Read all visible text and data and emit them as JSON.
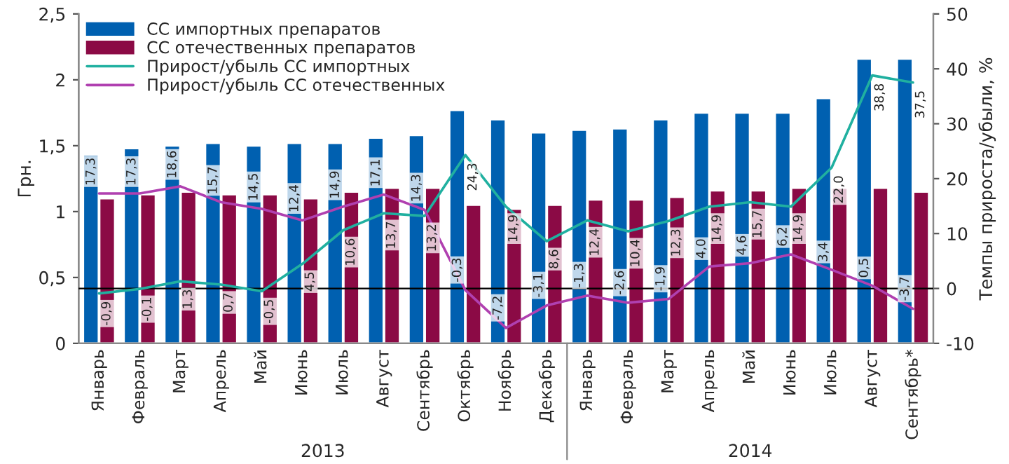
{
  "chart_data": {
    "type": "bar",
    "categories": [
      "Январь",
      "Февраль",
      "Март",
      "Апрель",
      "Май",
      "Июнь",
      "Июль",
      "Август",
      "Сентябрь",
      "Октябрь",
      "Ноябрь",
      "Декабрь",
      "Январь",
      "Февраль",
      "Март",
      "Апрель",
      "Май",
      "Июнь",
      "Июль",
      "Август",
      "Сентябрь*"
    ],
    "series": [
      {
        "name": "СС импортных препаратов",
        "color": "#0060b0",
        "values": [
          1.43,
          1.48,
          1.5,
          1.52,
          1.5,
          1.52,
          1.52,
          1.56,
          1.58,
          1.77,
          1.7,
          1.6,
          1.62,
          1.63,
          1.7,
          1.75,
          1.75,
          1.75,
          1.86,
          2.16,
          2.16
        ]
      },
      {
        "name": "СС отечественных препаратов",
        "color": "#8b0a45",
        "values": [
          1.1,
          1.13,
          1.15,
          1.13,
          1.13,
          1.1,
          1.15,
          1.18,
          1.18,
          1.05,
          1.02,
          1.05,
          1.09,
          1.09,
          1.11,
          1.16,
          1.16,
          1.18,
          1.18,
          1.18,
          1.15
        ]
      },
      {
        "name": "Прирост/убыль СС импортных",
        "type": "line",
        "axis": "y2",
        "color": "#20b0a0",
        "values": [
          -0.9,
          -0.1,
          1.3,
          0.7,
          -0.5,
          4.5,
          10.6,
          13.7,
          13.2,
          24.3,
          14.9,
          8.6,
          12.4,
          10.4,
          12.3,
          14.9,
          15.7,
          14.9,
          22.0,
          38.8,
          37.5
        ],
        "value_labels": [
          "-0,9",
          "-0,1",
          "1,3",
          "0,7",
          "-0,5",
          "4,5",
          "10,6",
          "13,7",
          "13,2",
          "24,3",
          "14,9",
          "8,6",
          "12,4",
          "10,4",
          "12,3",
          "14,9",
          "15,7",
          "14,9",
          "22,0",
          "38,8",
          "37,5"
        ]
      },
      {
        "name": "Прирост/убыль СС отечественных",
        "type": "line",
        "axis": "y2",
        "color": "#b040b0",
        "values": [
          17.3,
          17.3,
          18.6,
          15.7,
          14.5,
          12.4,
          14.9,
          17.1,
          14.3,
          -0.3,
          -7.2,
          -3.1,
          -1.3,
          -2.6,
          -1.9,
          4.0,
          4.6,
          6.2,
          3.4,
          0.5,
          -3.7
        ],
        "value_labels": [
          "17,3",
          "17,3",
          "18,6",
          "15,7",
          "14,5",
          "12,4",
          "14,9",
          "17,1",
          "14,3",
          "-0,3",
          "-7,2",
          "-3,1",
          "-1,3",
          "-2,6",
          "-1,9",
          "4,0",
          "4,6",
          "6,2",
          "3,4",
          "0,5",
          "-3,7"
        ]
      }
    ],
    "ylabel": "Грн.",
    "y2label": "Темпы прироста/убыли, %",
    "ylim": [
      0,
      2.5
    ],
    "yticks": [
      0,
      {
        "value": 0.5,
        "label": "0,5"
      },
      1,
      {
        "value": 1.5,
        "label": "1,5"
      },
      2,
      {
        "value": 2.5,
        "label": "2,5"
      }
    ],
    "y2lim": [
      -10,
      50
    ],
    "y2ticks": [
      -10,
      0,
      10,
      20,
      30,
      40,
      50
    ],
    "ref_lines": [
      {
        "axis": "y2",
        "value": 0,
        "color": "#000000"
      }
    ],
    "annotations": [
      "2013",
      "2014"
    ],
    "legend": "top left",
    "grid": false
  }
}
